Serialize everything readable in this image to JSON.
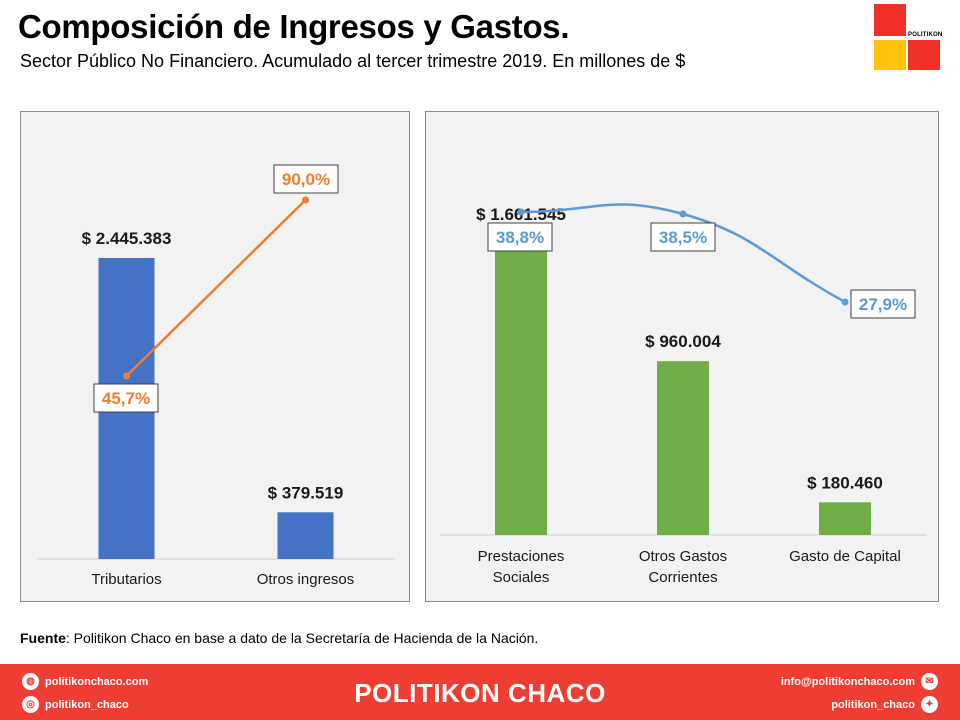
{
  "header": {
    "title": "Composición de Ingresos y Gastos.",
    "subtitle": "Sector Público No Financiero. Acumulado  al tercer trimestre 2019. En millones  de $"
  },
  "logo": {
    "text": "POLITIKON",
    "colors": [
      "#f0302a",
      "#ffc20e"
    ]
  },
  "source": {
    "label": "Fuente",
    "text": ":  Politikon  Chaco  en  base  a  dato  de  la  Secretaría  de  Hacienda  de  la  Nación."
  },
  "footer": {
    "brand": "POLITIKON CHACO",
    "left_items": [
      {
        "icon": "globe-icon",
        "text": "politikonchaco.com"
      },
      {
        "icon": "instagram-icon",
        "text": "politikon_chaco"
      }
    ],
    "right_items": [
      {
        "icon": "mail-icon",
        "text": "info@politikonchaco.com"
      },
      {
        "icon": "twitter-icon",
        "text": "politikon_chaco"
      }
    ],
    "color": "#ee3e33"
  },
  "chart_data": [
    {
      "type": "bar",
      "name": "ingresos",
      "categories": [
        "Tributarios",
        "Otros ingresos"
      ],
      "values": [
        2445383,
        379519
      ],
      "value_labels": [
        "$ 2.445.383",
        "$ 379.519"
      ],
      "bar_color": "#4472c4",
      "line": {
        "values": [
          45.7,
          90.0
        ],
        "labels": [
          "45,7%",
          "90,0%"
        ],
        "color": "#ed7d31"
      },
      "ylim": [
        0,
        2900000
      ],
      "grid": false
    },
    {
      "type": "bar",
      "name": "gastos",
      "categories": [
        "Prestaciones Sociales",
        "Otros Gastos Corrientes",
        "Gasto de Capital"
      ],
      "category_lines": [
        [
          "Prestaciones",
          "Sociales"
        ],
        [
          "Otros Gastos",
          "Corrientes"
        ],
        [
          "Gasto de Capital"
        ]
      ],
      "values": [
        1661545,
        960004,
        180460
      ],
      "value_labels": [
        "$ 1.661.545",
        "$ 960.004",
        "$ 180.460"
      ],
      "bar_color": "#70ad47",
      "line": {
        "values": [
          38.8,
          38.5,
          27.9
        ],
        "labels": [
          "38,8%",
          "38,5%",
          "27,9%"
        ],
        "color": "#5b9bd5"
      },
      "ylim": [
        0,
        1950000
      ],
      "grid": false
    }
  ]
}
